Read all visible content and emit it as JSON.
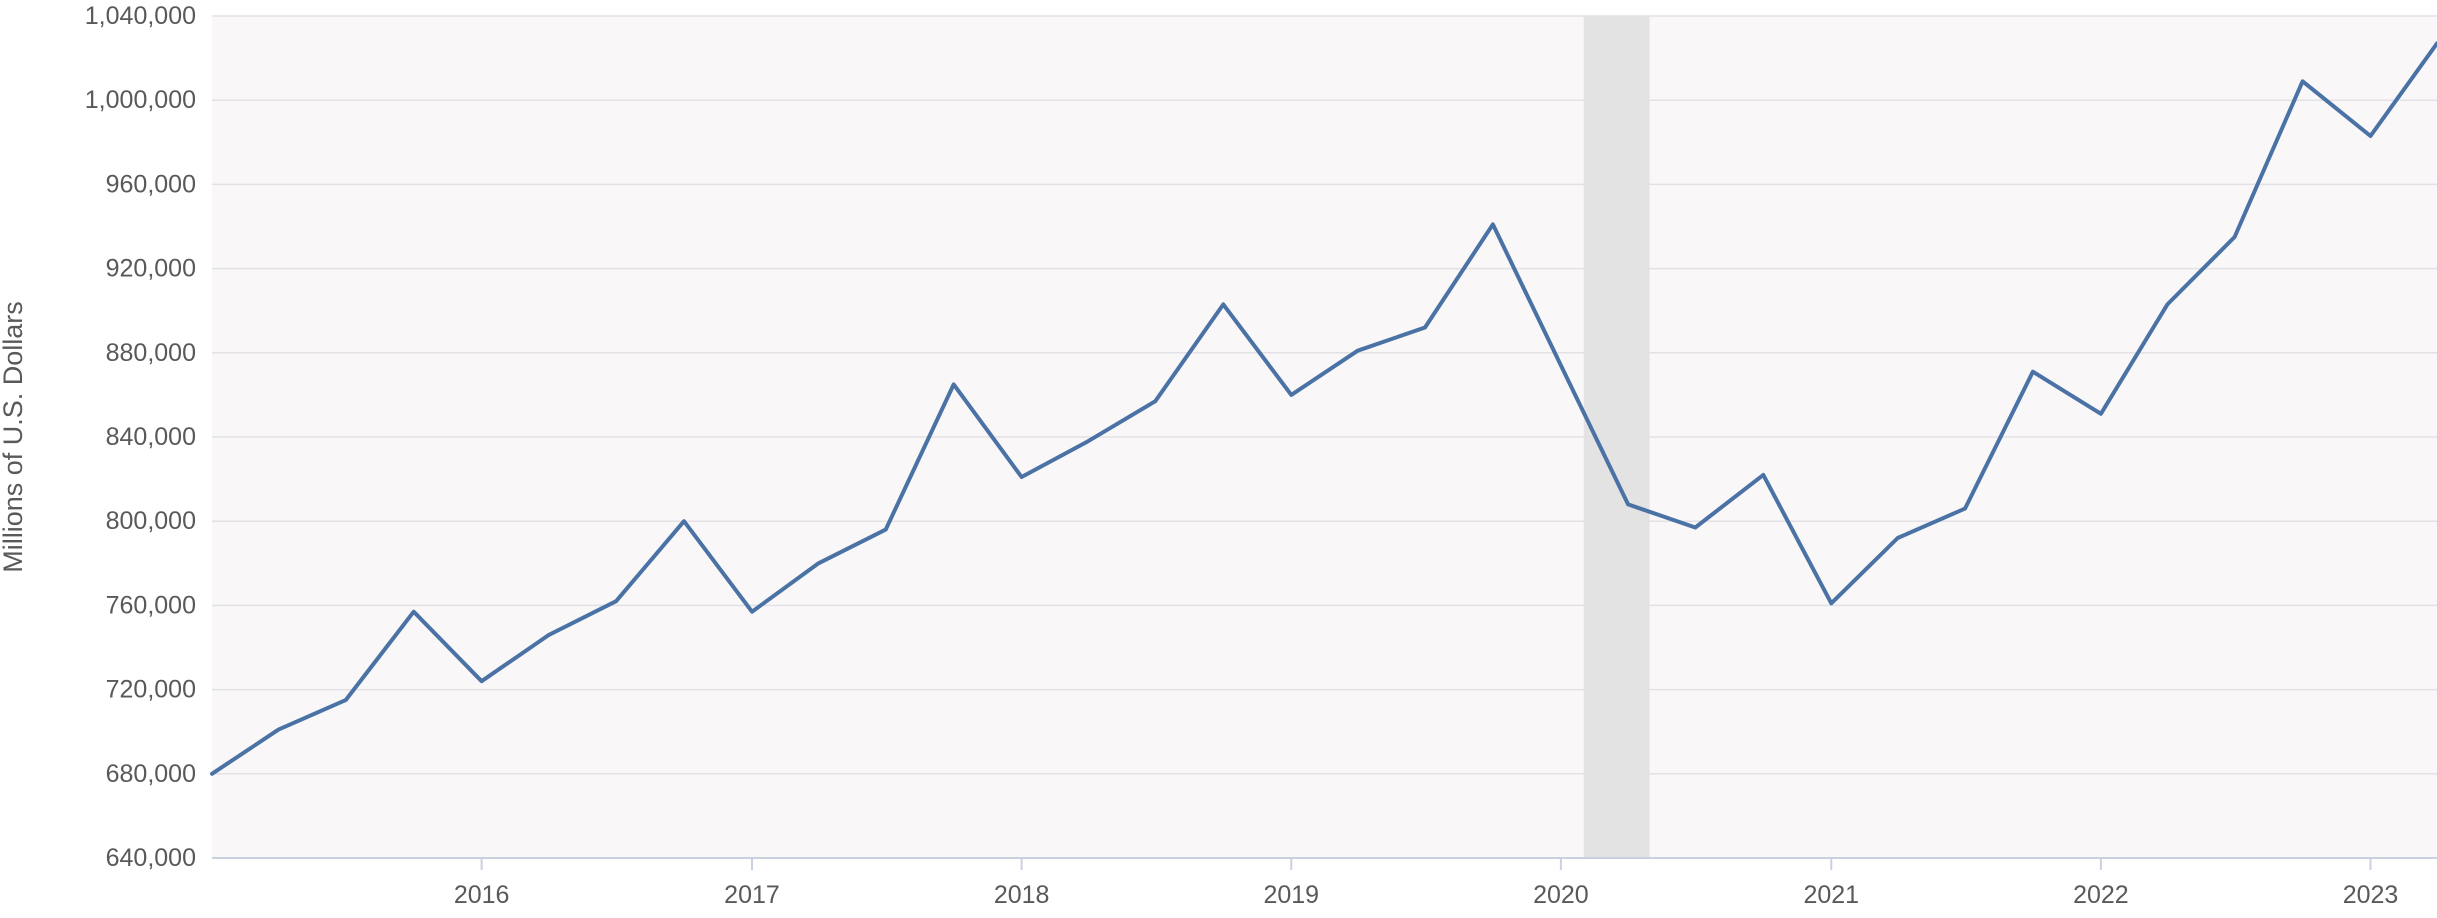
{
  "chart_data": {
    "type": "line",
    "title": "",
    "xlabel": "",
    "ylabel": "Millions of U.S. Dollars",
    "ylim": [
      640000,
      1040000
    ],
    "xlim": [
      "2015-01-01",
      "2023-04-01"
    ],
    "yticks": [
      640000,
      680000,
      720000,
      760000,
      800000,
      840000,
      880000,
      920000,
      960000,
      1000000,
      1040000
    ],
    "ytick_labels": [
      "640,000",
      "680,000",
      "720,000",
      "760,000",
      "800,000",
      "840,000",
      "880,000",
      "920,000",
      "960,000",
      "1,000,000",
      "1,040,000"
    ],
    "xticks": [
      "2016-01-01",
      "2017-01-01",
      "2018-01-01",
      "2019-01-01",
      "2020-01-01",
      "2021-01-01",
      "2022-01-01",
      "2023-01-01"
    ],
    "xtick_labels": [
      "2016",
      "2017",
      "2018",
      "2019",
      "2020",
      "2021",
      "2022",
      "2023"
    ],
    "grid": true,
    "shaded_regions": [
      {
        "start": "2020-02-01",
        "end": "2020-04-30",
        "meaning": "recession"
      }
    ],
    "colors": {
      "line": "#4a72a5",
      "plot_background": "#f9f7f8",
      "grid": "#e2e2e6",
      "shade": "#e3e3e3",
      "axis": "#c9d1e0",
      "text": "#595959"
    },
    "series": [
      {
        "x": [
          "2015-01-01",
          "2015-04-01",
          "2015-07-01",
          "2015-10-01",
          "2016-01-01",
          "2016-04-01",
          "2016-07-01",
          "2016-10-01",
          "2017-01-01",
          "2017-04-01",
          "2017-07-01",
          "2017-10-01",
          "2018-01-01",
          "2018-04-01",
          "2018-07-01",
          "2018-10-01",
          "2019-01-01",
          "2019-04-01",
          "2019-07-01",
          "2019-10-01",
          "2020-01-01",
          "2020-04-01",
          "2020-07-01",
          "2020-10-01",
          "2021-01-01",
          "2021-04-01",
          "2021-07-01",
          "2021-10-01",
          "2022-01-01",
          "2022-04-01",
          "2022-07-01",
          "2022-10-01",
          "2023-01-01",
          "2023-04-01"
        ],
        "values": [
          680000,
          701000,
          715000,
          757000,
          724000,
          746000,
          762000,
          800000,
          757000,
          780000,
          796000,
          865000,
          821000,
          838000,
          857000,
          903000,
          860000,
          881000,
          892000,
          941000,
          874000,
          808000,
          797000,
          822000,
          761000,
          792000,
          806000,
          871000,
          851000,
          903000,
          935000,
          1009000,
          983000,
          1027000
        ]
      }
    ]
  }
}
